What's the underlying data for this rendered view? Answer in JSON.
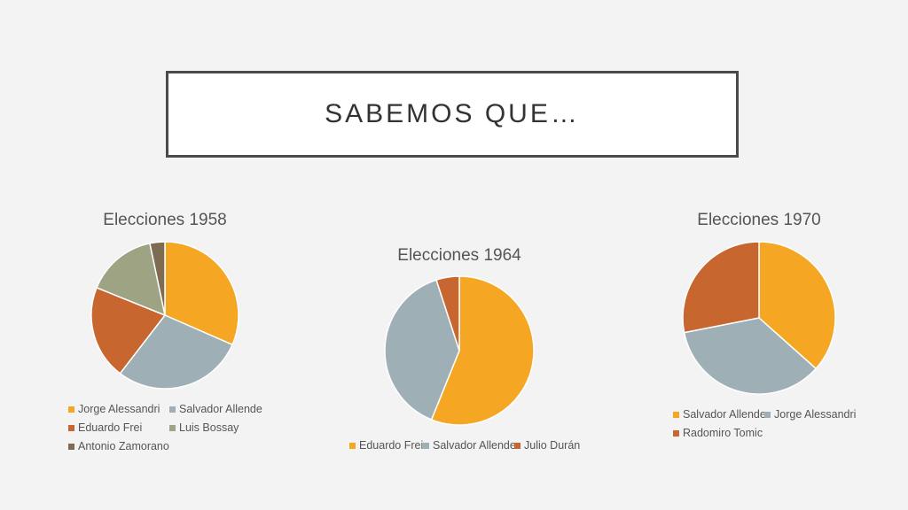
{
  "slide": {
    "title": "SABEMOS QUE…"
  },
  "chart_data": [
    {
      "type": "pie",
      "title": "Elecciones 1958",
      "categories": [
        "Jorge Alessandri",
        "Salvador Allende",
        "Eduardo Frei",
        "Luis Bossay",
        "Antonio Zamorano"
      ],
      "values": [
        31.6,
        28.9,
        20.7,
        15.6,
        3.3
      ],
      "colors": [
        "#f5a623",
        "#9eb0b6",
        "#c8662f",
        "#9ea383",
        "#7e6c52"
      ],
      "legend_position": "bottom"
    },
    {
      "type": "pie",
      "title": "Elecciones 1964",
      "categories": [
        "Eduardo Frei",
        "Salvador Allende",
        "Julio Durán"
      ],
      "values": [
        56.1,
        38.9,
        5.0
      ],
      "colors": [
        "#f5a623",
        "#9eb0b6",
        "#c8662f"
      ],
      "legend_position": "bottom"
    },
    {
      "type": "pie",
      "title": "Elecciones 1970",
      "categories": [
        "Salvador Allende",
        "Jorge Alessandri",
        "Radomiro Tomic"
      ],
      "values": [
        36.6,
        35.3,
        28.1
      ],
      "colors": [
        "#f5a623",
        "#9eb0b6",
        "#c8662f"
      ],
      "legend_position": "bottom"
    }
  ]
}
